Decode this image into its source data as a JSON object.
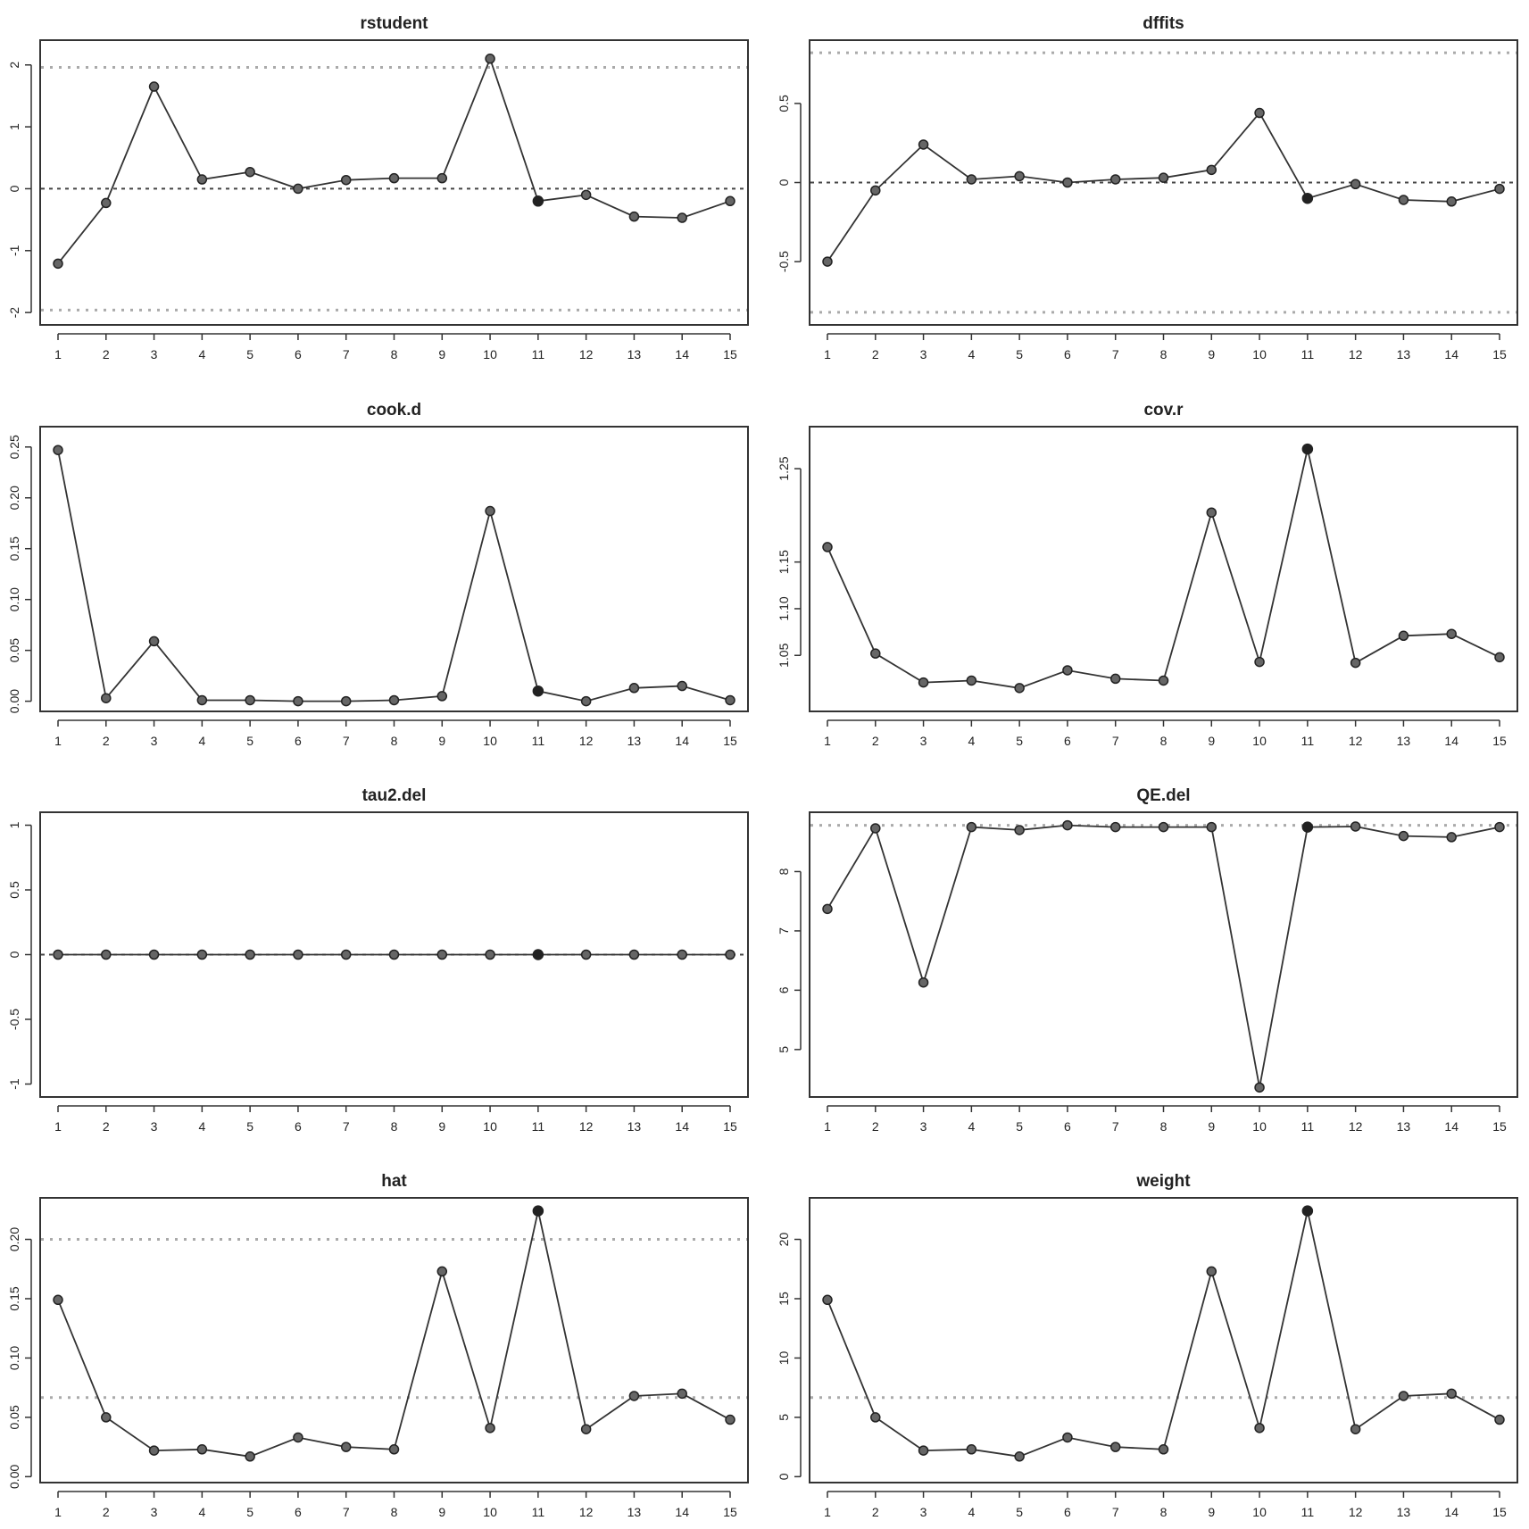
{
  "figure_title": "",
  "chart_data": [
    {
      "type": "line",
      "title": "rstudent",
      "x": [
        1,
        2,
        3,
        4,
        5,
        6,
        7,
        8,
        9,
        10,
        11,
        12,
        13,
        14,
        15
      ],
      "series": [
        {
          "values": [
            -1.21,
            -0.23,
            1.65,
            0.15,
            0.27,
            0.0,
            0.14,
            0.17,
            0.17,
            2.1,
            -0.2,
            -0.1,
            -0.45,
            -0.47,
            -0.2
          ]
        }
      ],
      "ylim": [
        -2.2,
        2.4
      ],
      "yticks": [
        -2,
        -1,
        0,
        1,
        2
      ],
      "ref_lines": [
        {
          "y": 0,
          "style": "dark"
        },
        {
          "y": 1.96,
          "style": "light"
        },
        {
          "y": -1.96,
          "style": "light"
        }
      ],
      "filled_points": [
        11
      ],
      "grid": false,
      "xlabel": "",
      "ylabel": ""
    },
    {
      "type": "line",
      "title": "dffits",
      "x": [
        1,
        2,
        3,
        4,
        5,
        6,
        7,
        8,
        9,
        10,
        11,
        12,
        13,
        14,
        15
      ],
      "series": [
        {
          "values": [
            -0.5,
            -0.05,
            0.24,
            0.02,
            0.04,
            0.0,
            0.02,
            0.03,
            0.08,
            0.44,
            -0.1,
            -0.01,
            -0.11,
            -0.12,
            -0.04
          ]
        }
      ],
      "ylim": [
        -0.9,
        0.9
      ],
      "yticks": [
        -0.5,
        0.0,
        0.5
      ],
      "ref_lines": [
        {
          "y": 0,
          "style": "dark"
        },
        {
          "y": 0.82,
          "style": "light"
        },
        {
          "y": -0.82,
          "style": "light"
        }
      ],
      "filled_points": [
        11
      ],
      "grid": false,
      "xlabel": "",
      "ylabel": ""
    },
    {
      "type": "line",
      "title": "cook.d",
      "x": [
        1,
        2,
        3,
        4,
        5,
        6,
        7,
        8,
        9,
        10,
        11,
        12,
        13,
        14,
        15
      ],
      "series": [
        {
          "values": [
            0.247,
            0.003,
            0.059,
            0.001,
            0.001,
            0.0,
            0.0,
            0.001,
            0.005,
            0.187,
            0.01,
            0.0,
            0.013,
            0.015,
            0.001
          ]
        }
      ],
      "ylim": [
        -0.01,
        0.27
      ],
      "yticks": [
        0.0,
        0.05,
        0.1,
        0.15,
        0.2,
        0.25
      ],
      "ytick_labels": [
        "0.00",
        "0.05",
        "0.10",
        "0.15",
        "0.20",
        "0.25"
      ],
      "ref_lines": [],
      "filled_points": [
        11
      ],
      "grid": false,
      "xlabel": "",
      "ylabel": ""
    },
    {
      "type": "line",
      "title": "cov.r",
      "x": [
        1,
        2,
        3,
        4,
        5,
        6,
        7,
        8,
        9,
        10,
        11,
        12,
        13,
        14,
        15
      ],
      "series": [
        {
          "values": [
            1.166,
            1.052,
            1.021,
            1.023,
            1.015,
            1.034,
            1.025,
            1.023,
            1.203,
            1.043,
            1.271,
            1.042,
            1.071,
            1.073,
            1.048
          ]
        }
      ],
      "ylim": [
        0.99,
        1.295
      ],
      "yticks": [
        1.05,
        1.1,
        1.15,
        1.25
      ],
      "ytick_labels": [
        "1.05",
        "1.10",
        "1.15",
        "1.25"
      ],
      "ref_lines": [],
      "filled_points": [
        11
      ],
      "grid": false,
      "xlabel": "",
      "ylabel": ""
    },
    {
      "type": "line",
      "title": "tau2.del",
      "x": [
        1,
        2,
        3,
        4,
        5,
        6,
        7,
        8,
        9,
        10,
        11,
        12,
        13,
        14,
        15
      ],
      "series": [
        {
          "values": [
            0,
            0,
            0,
            0,
            0,
            0,
            0,
            0,
            0,
            0,
            0,
            0,
            0,
            0,
            0
          ]
        }
      ],
      "ylim": [
        -1.1,
        1.1
      ],
      "yticks": [
        -1.0,
        -0.5,
        0.0,
        0.5,
        1.0
      ],
      "ref_lines": [
        {
          "y": 0,
          "style": "dark"
        }
      ],
      "filled_points": [
        11
      ],
      "grid": false,
      "xlabel": "",
      "ylabel": ""
    },
    {
      "type": "line",
      "title": "QE.del",
      "x": [
        1,
        2,
        3,
        4,
        5,
        6,
        7,
        8,
        9,
        10,
        11,
        12,
        13,
        14,
        15
      ],
      "series": [
        {
          "values": [
            7.37,
            8.73,
            6.13,
            8.75,
            8.7,
            8.78,
            8.75,
            8.75,
            8.75,
            4.36,
            8.75,
            8.76,
            8.6,
            8.58,
            8.75
          ]
        }
      ],
      "ylim": [
        4.2,
        9.0
      ],
      "yticks": [
        5,
        6,
        7,
        8
      ],
      "ref_lines": [
        {
          "y": 8.78,
          "style": "light"
        }
      ],
      "filled_points": [
        11
      ],
      "grid": false,
      "xlabel": "",
      "ylabel": ""
    },
    {
      "type": "line",
      "title": "hat",
      "x": [
        1,
        2,
        3,
        4,
        5,
        6,
        7,
        8,
        9,
        10,
        11,
        12,
        13,
        14,
        15
      ],
      "series": [
        {
          "values": [
            0.149,
            0.05,
            0.022,
            0.023,
            0.017,
            0.033,
            0.025,
            0.023,
            0.173,
            0.041,
            0.224,
            0.04,
            0.068,
            0.07,
            0.048
          ]
        }
      ],
      "ylim": [
        -0.005,
        0.235
      ],
      "yticks": [
        0.0,
        0.05,
        0.1,
        0.15,
        0.2
      ],
      "ytick_labels": [
        "0.00",
        "0.05",
        "0.10",
        "0.15",
        "0.20"
      ],
      "ref_lines": [
        {
          "y": 0.0667,
          "style": "light"
        },
        {
          "y": 0.2,
          "style": "light"
        }
      ],
      "filled_points": [
        11
      ],
      "grid": false,
      "xlabel": "",
      "ylabel": ""
    },
    {
      "type": "line",
      "title": "weight",
      "x": [
        1,
        2,
        3,
        4,
        5,
        6,
        7,
        8,
        9,
        10,
        11,
        12,
        13,
        14,
        15
      ],
      "series": [
        {
          "values": [
            14.9,
            5.0,
            2.2,
            2.3,
            1.7,
            3.3,
            2.5,
            2.3,
            17.3,
            4.1,
            22.4,
            4.0,
            6.8,
            7.0,
            4.8
          ]
        }
      ],
      "ylim": [
        -0.5,
        23.5
      ],
      "yticks": [
        0,
        5,
        10,
        15,
        20
      ],
      "ref_lines": [
        {
          "y": 6.67,
          "style": "light"
        }
      ],
      "filled_points": [
        11
      ],
      "grid": false,
      "xlabel": "",
      "ylabel": ""
    }
  ]
}
